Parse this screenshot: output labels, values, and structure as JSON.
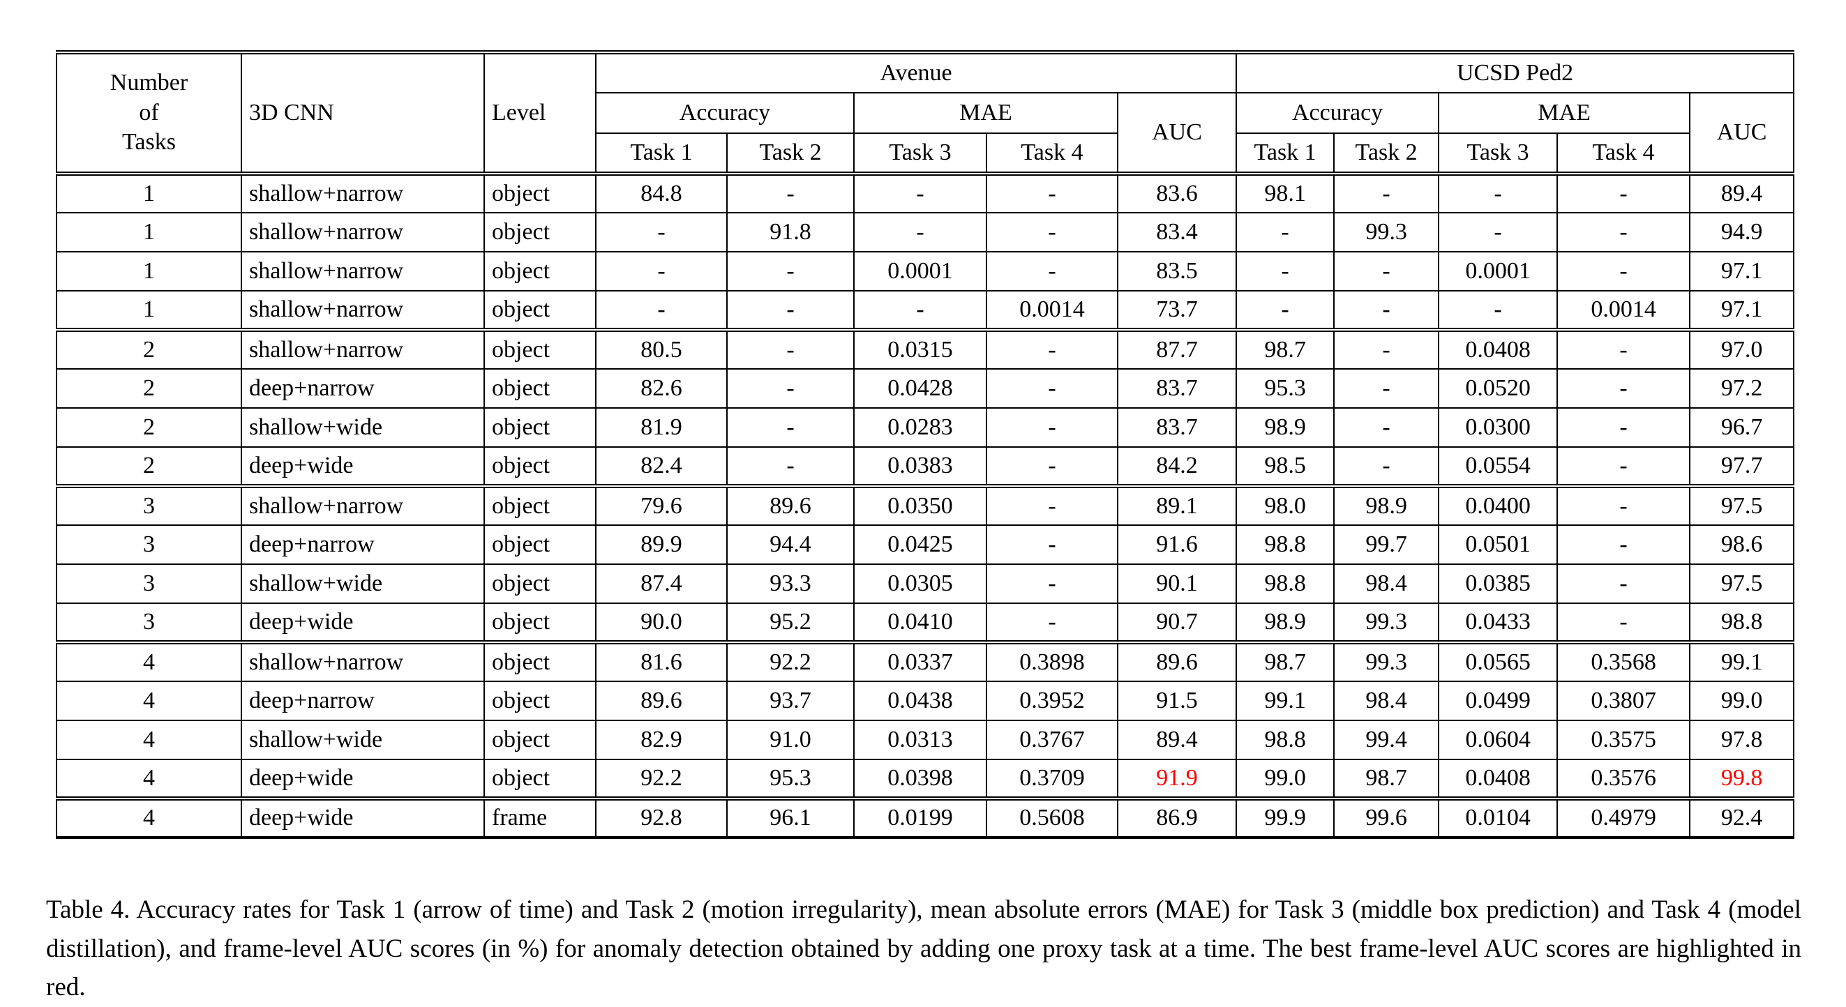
{
  "colors": {
    "highlight_red": "#ff0000"
  },
  "table": {
    "header": {
      "tasks_lines": [
        "Number",
        "of",
        "Tasks"
      ],
      "cnn": "3D CNN",
      "level": "Level",
      "dataset1": "Avenue",
      "dataset2": "UCSD Ped2",
      "accuracy": "Accuracy",
      "mae": "MAE",
      "auc": "AUC",
      "task1": "Task 1",
      "task2": "Task 2",
      "task3": "Task 3",
      "task4": "Task 4"
    },
    "rows": [
      {
        "cells": [
          "1",
          "shallow+narrow",
          "object",
          "84.8",
          "-",
          "-",
          "-",
          "83.6",
          "98.1",
          "-",
          "-",
          "-",
          "89.4"
        ]
      },
      {
        "cells": [
          "1",
          "shallow+narrow",
          "object",
          "-",
          "91.8",
          "-",
          "-",
          "83.4",
          "-",
          "99.3",
          "-",
          "-",
          "94.9"
        ]
      },
      {
        "cells": [
          "1",
          "shallow+narrow",
          "object",
          "-",
          "-",
          "0.0001",
          "-",
          "83.5",
          "-",
          "-",
          "0.0001",
          "-",
          "97.1"
        ]
      },
      {
        "cells": [
          "1",
          "shallow+narrow",
          "object",
          "-",
          "-",
          "-",
          "0.0014",
          "73.7",
          "-",
          "-",
          "-",
          "0.0014",
          "97.1"
        ]
      },
      {
        "group_start": true,
        "cells": [
          "2",
          "shallow+narrow",
          "object",
          "80.5",
          "-",
          "0.0315",
          "-",
          "87.7",
          "98.7",
          "-",
          "0.0408",
          "-",
          "97.0"
        ]
      },
      {
        "cells": [
          "2",
          "deep+narrow",
          "object",
          "82.6",
          "-",
          "0.0428",
          "-",
          "83.7",
          "95.3",
          "-",
          "0.0520",
          "-",
          "97.2"
        ]
      },
      {
        "cells": [
          "2",
          "shallow+wide",
          "object",
          "81.9",
          "-",
          "0.0283",
          "-",
          "83.7",
          "98.9",
          "-",
          "0.0300",
          "-",
          "96.7"
        ]
      },
      {
        "cells": [
          "2",
          "deep+wide",
          "object",
          "82.4",
          "-",
          "0.0383",
          "-",
          "84.2",
          "98.5",
          "-",
          "0.0554",
          "-",
          "97.7"
        ]
      },
      {
        "group_start": true,
        "cells": [
          "3",
          "shallow+narrow",
          "object",
          "79.6",
          "89.6",
          "0.0350",
          "-",
          "89.1",
          "98.0",
          "98.9",
          "0.0400",
          "-",
          "97.5"
        ]
      },
      {
        "cells": [
          "3",
          "deep+narrow",
          "object",
          "89.9",
          "94.4",
          "0.0425",
          "-",
          "91.6",
          "98.8",
          "99.7",
          "0.0501",
          "-",
          "98.6"
        ]
      },
      {
        "cells": [
          "3",
          "shallow+wide",
          "object",
          "87.4",
          "93.3",
          "0.0305",
          "-",
          "90.1",
          "98.8",
          "98.4",
          "0.0385",
          "-",
          "97.5"
        ]
      },
      {
        "cells": [
          "3",
          "deep+wide",
          "object",
          "90.0",
          "95.2",
          "0.0410",
          "-",
          "90.7",
          "98.9",
          "99.3",
          "0.0433",
          "-",
          "98.8"
        ]
      },
      {
        "group_start": true,
        "cells": [
          "4",
          "shallow+narrow",
          "object",
          "81.6",
          "92.2",
          "0.0337",
          "0.3898",
          "89.6",
          "98.7",
          "99.3",
          "0.0565",
          "0.3568",
          "99.1"
        ]
      },
      {
        "cells": [
          "4",
          "deep+narrow",
          "object",
          "89.6",
          "93.7",
          "0.0438",
          "0.3952",
          "91.5",
          "99.1",
          "98.4",
          "0.0499",
          "0.3807",
          "99.0"
        ]
      },
      {
        "cells": [
          "4",
          "shallow+wide",
          "object",
          "82.9",
          "91.0",
          "0.0313",
          "0.3767",
          "89.4",
          "98.8",
          "99.4",
          "0.0604",
          "0.3575",
          "97.8"
        ]
      },
      {
        "cells": [
          "4",
          "deep+wide",
          "object",
          "92.2",
          "95.3",
          "0.0398",
          "0.3709",
          "91.9",
          "99.0",
          "98.7",
          "0.0408",
          "0.3576",
          "99.8"
        ],
        "red_cells": [
          7,
          12
        ]
      },
      {
        "group_start": true,
        "cells": [
          "4",
          "deep+wide",
          "frame",
          "92.8",
          "96.1",
          "0.0199",
          "0.5608",
          "86.9",
          "99.9",
          "99.6",
          "0.0104",
          "0.4979",
          "92.4"
        ]
      }
    ]
  },
  "caption": "Table 4. Accuracy rates for Task 1 (arrow of time) and Task 2 (motion irregularity), mean absolute errors (MAE) for Task 3 (middle box prediction) and Task 4 (model distillation), and frame-level AUC scores (in %) for anomaly detection obtained by adding one proxy task at a time. The best frame-level AUC scores are highlighted in red."
}
